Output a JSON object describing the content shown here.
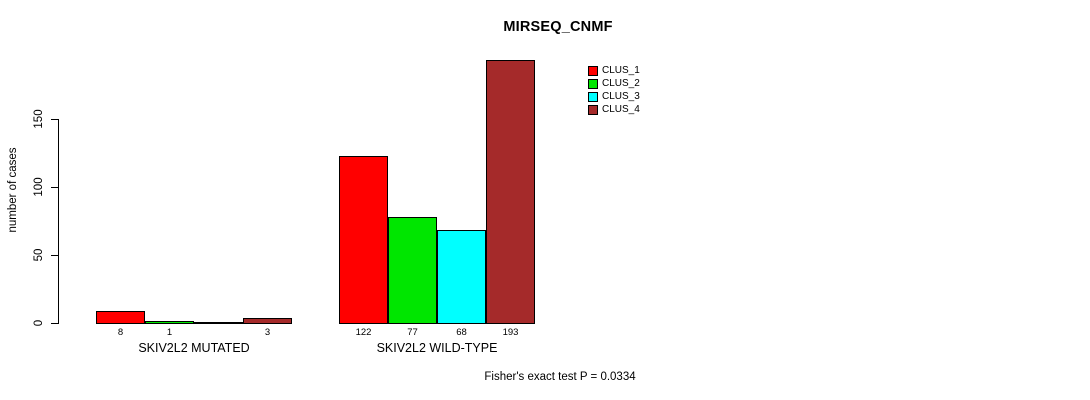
{
  "title": "MIRSEQ_CNMF",
  "annotation": "Fisher's exact test P = 0.0334",
  "chart_data": {
    "type": "bar",
    "title": "MIRSEQ_CNMF",
    "xlabel": "",
    "ylabel": "number of cases",
    "ylim": [
      0,
      200
    ],
    "yticks": [
      0,
      50,
      100,
      150
    ],
    "grid": false,
    "legend_position": "top-right",
    "series": [
      {
        "name": "CLUS_1",
        "color": "#ff0000"
      },
      {
        "name": "CLUS_2",
        "color": "#00e600"
      },
      {
        "name": "CLUS_3",
        "color": "#00ffff"
      },
      {
        "name": "CLUS_4",
        "color": "#a52a2a"
      }
    ],
    "groups": [
      {
        "label": "SKIV2L2 MUTATED",
        "values": [
          8,
          1,
          0,
          3
        ],
        "value_labels": [
          "8",
          "1",
          "",
          "3"
        ]
      },
      {
        "label": "SKIV2L2 WILD-TYPE",
        "values": [
          122,
          77,
          68,
          193
        ],
        "value_labels": [
          "122",
          "77",
          "68",
          "193"
        ]
      }
    ],
    "annotation": "Fisher's exact test P = 0.0334"
  }
}
